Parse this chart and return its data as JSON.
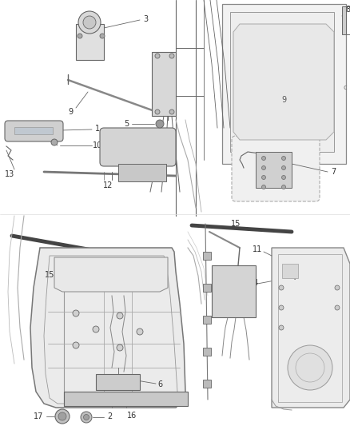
{
  "bg": "#ffffff",
  "lc": "#666666",
  "tc": "#333333",
  "lw_thin": 0.6,
  "lw_med": 1.0,
  "lw_thick": 2.5,
  "fig_width": 4.38,
  "fig_height": 5.33,
  "dpi": 100
}
